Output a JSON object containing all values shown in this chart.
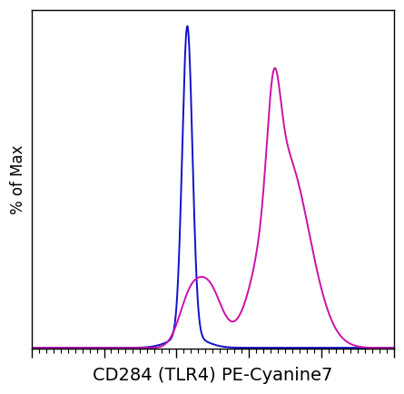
{
  "title": "",
  "xlabel": "CD284 (TLR4) PE-Cyanine7",
  "ylabel": "% of Max",
  "xlabel_fontsize": 14,
  "ylabel_fontsize": 12,
  "blue_color": "#1010CC",
  "magenta_color": "#CC10AA",
  "line_width": 1.4,
  "background_color": "#ffffff",
  "xlim": [
    0,
    1000
  ],
  "ylim": [
    0,
    105
  ],
  "tick_color": "#000000",
  "spine_color": "#000000"
}
